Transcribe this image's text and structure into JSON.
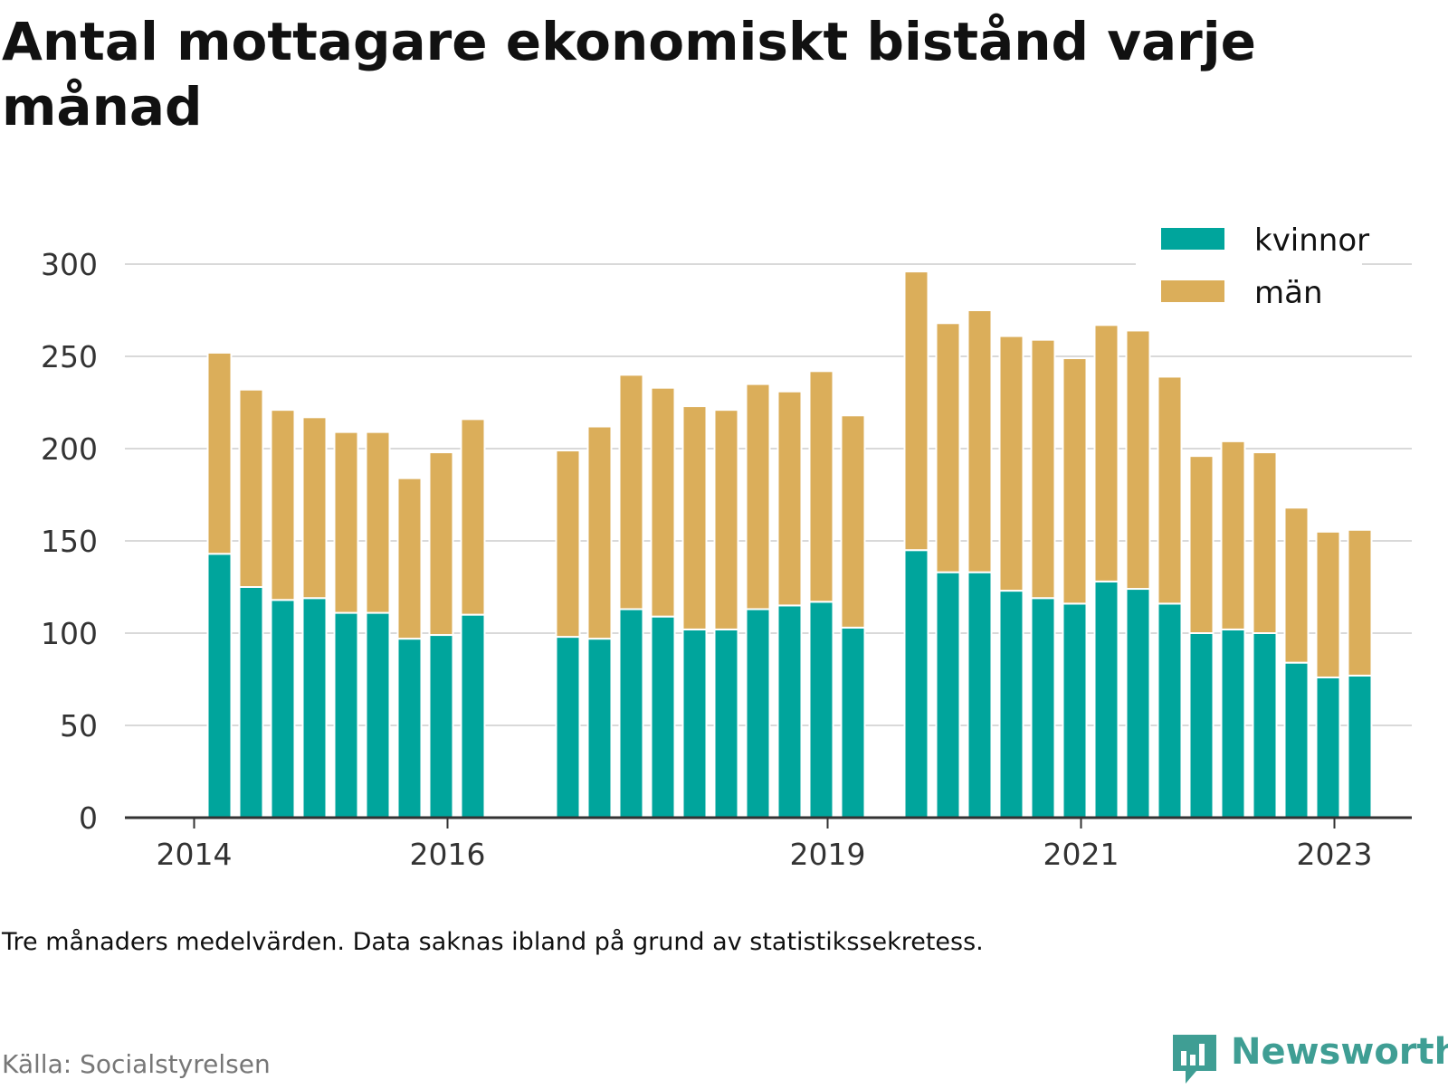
{
  "title": "Antal mottagare ekonomiskt bistånd varje månad",
  "note": "Tre månaders medelvärden. Data saknas ibland på grund av statistikssekretess.",
  "source": "Källa: Socialstyrelsen",
  "brand": "Newsworthy",
  "colors": {
    "kvinnor": "#00a59c",
    "man": "#dbae5a",
    "grid": "#d9d9d9",
    "axis": "#333333",
    "brand": "#3f9e94"
  },
  "chart_data": {
    "type": "bar",
    "stacked": true,
    "ylim": [
      0,
      300
    ],
    "yticks": [
      0,
      50,
      100,
      150,
      200,
      250,
      300
    ],
    "xticks": [
      "2014",
      "2016",
      "2019",
      "2021",
      "2023"
    ],
    "legend": {
      "placement": "top-right"
    },
    "grid": true,
    "x_date_unit": "quarter",
    "x": [
      "2014-Q2",
      "2014-Q3",
      "2014-Q4",
      "2015-Q1",
      "2015-Q2",
      "2015-Q3",
      "2015-Q4",
      "2016-Q1",
      "2016-Q2",
      "2017-Q1",
      "2017-Q2",
      "2017-Q3",
      "2017-Q4",
      "2018-Q1",
      "2018-Q2",
      "2018-Q3",
      "2018-Q4",
      "2019-Q1",
      "2019-Q2",
      "2019-Q4",
      "2020-Q1",
      "2020-Q2",
      "2020-Q3",
      "2020-Q4",
      "2021-Q1",
      "2021-Q2",
      "2021-Q3",
      "2021-Q4",
      "2022-Q1",
      "2022-Q2",
      "2022-Q3",
      "2022-Q4",
      "2023-Q1",
      "2023-Q2"
    ],
    "series": [
      {
        "name": "kvinnor",
        "values": [
          143,
          125,
          118,
          119,
          111,
          111,
          97,
          99,
          110,
          98,
          97,
          113,
          109,
          102,
          102,
          113,
          115,
          117,
          103,
          145,
          133,
          133,
          123,
          119,
          116,
          128,
          124,
          116,
          100,
          102,
          100,
          84,
          76,
          77
        ]
      },
      {
        "name": "män",
        "values": [
          109,
          107,
          103,
          98,
          98,
          98,
          87,
          99,
          106,
          101,
          115,
          127,
          124,
          121,
          119,
          122,
          116,
          125,
          115,
          151,
          135,
          142,
          138,
          140,
          133,
          139,
          140,
          123,
          96,
          102,
          98,
          84,
          79,
          79
        ]
      }
    ]
  }
}
